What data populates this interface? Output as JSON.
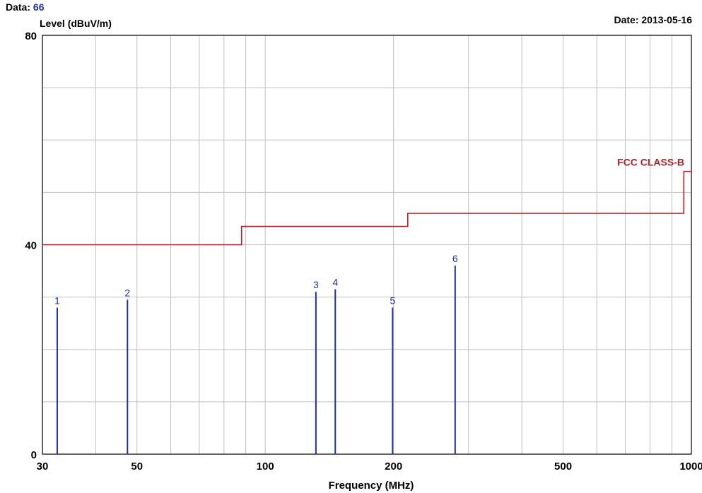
{
  "header": {
    "data_label": "Data:",
    "data_value": "66",
    "date_label": "Date:",
    "date_value": "2013-05-16"
  },
  "colors": {
    "limit_line": "#b0202a",
    "markers": "#1f2fa8",
    "grid": "#c0c0c0",
    "axis_text": "#000000",
    "background": "#ffffff"
  },
  "chart_data": {
    "type": "line",
    "ylabel": "Level (dBuV/m)",
    "xlabel": "Frequency (MHz)",
    "xscale": "log",
    "xlim": [
      30,
      1000
    ],
    "ylim": [
      0,
      80
    ],
    "x_ticks": [
      30,
      50,
      100,
      200,
      500,
      1000
    ],
    "y_ticks": [
      0,
      40,
      80
    ],
    "grid": true,
    "limit": {
      "name": "FCC CLASS-B",
      "points": [
        [
          30,
          40
        ],
        [
          88,
          40
        ],
        [
          88,
          43.5
        ],
        [
          216,
          43.5
        ],
        [
          216,
          46
        ],
        [
          960,
          46
        ],
        [
          960,
          54
        ],
        [
          1000,
          54
        ]
      ]
    },
    "markers": [
      {
        "label": "1",
        "freq": 32.5,
        "level": 28
      },
      {
        "label": "2",
        "freq": 47.5,
        "level": 29.5
      },
      {
        "label": "3",
        "freq": 131.5,
        "level": 31
      },
      {
        "label": "4",
        "freq": 146,
        "level": 31.5
      },
      {
        "label": "5",
        "freq": 199,
        "level": 28
      },
      {
        "label": "6",
        "freq": 279,
        "level": 36
      }
    ]
  }
}
